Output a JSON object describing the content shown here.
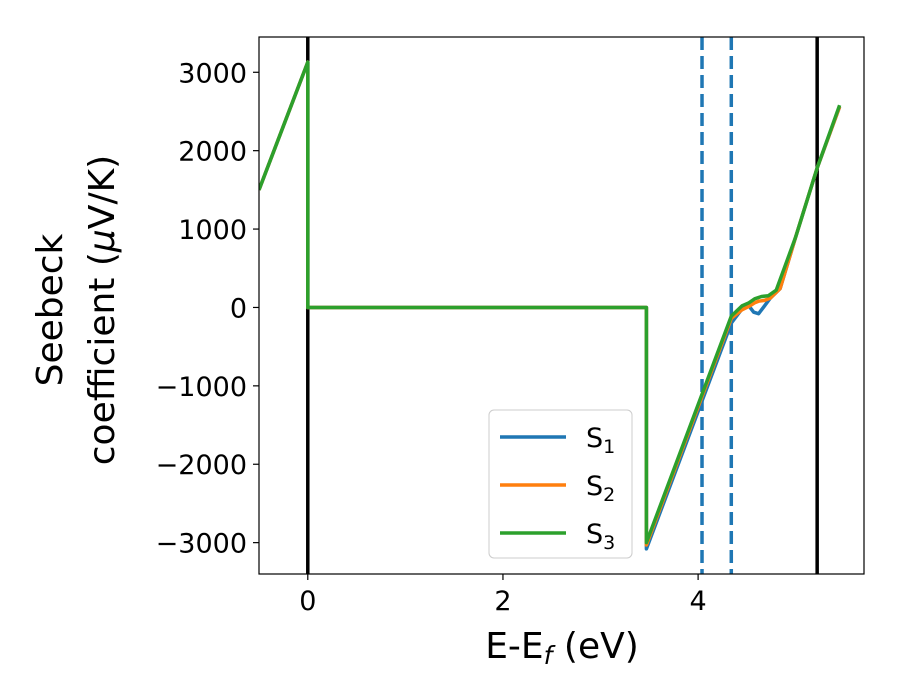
{
  "chart_data": {
    "type": "line",
    "title": "",
    "xlabel": {
      "main": "E-E",
      "sub": "f",
      "tail": " (eV)"
    },
    "ylabel": {
      "line1": "Seebeck",
      "line2_pre": "coefficient  (",
      "mu": "μ",
      "line2_post": "V/K)"
    },
    "xlim": [
      -0.5,
      5.7
    ],
    "ylim": [
      -3400,
      3450
    ],
    "xticks": [
      {
        "value": 0,
        "label": "0"
      },
      {
        "value": 2,
        "label": "2"
      },
      {
        "value": 4,
        "label": "4"
      }
    ],
    "yticks": [
      {
        "value": 3000,
        "label": "3000"
      },
      {
        "value": 2000,
        "label": "2000"
      },
      {
        "value": 1000,
        "label": "1000"
      },
      {
        "value": 0,
        "label": "0"
      },
      {
        "value": -1000,
        "label": "−1000"
      },
      {
        "value": -2000,
        "label": "−2000"
      },
      {
        "value": -3000,
        "label": "−3000"
      }
    ],
    "grid": false,
    "legend_position": "lower-right",
    "vlines": [
      {
        "x": 0.0,
        "color": "#000000",
        "style": "solid"
      },
      {
        "x": 5.22,
        "color": "#000000",
        "style": "solid"
      },
      {
        "x": 4.04,
        "color": "#1f77b4",
        "style": "dashed"
      },
      {
        "x": 4.34,
        "color": "#1f77b4",
        "style": "dashed"
      }
    ],
    "series": [
      {
        "name": "S",
        "sub": "1",
        "color": "#1f77b4",
        "points": [
          [
            -0.5,
            1500
          ],
          [
            0.0,
            3130
          ],
          [
            0.0,
            0
          ],
          [
            3.47,
            0
          ],
          [
            3.47,
            -3080
          ],
          [
            4.34,
            -200
          ],
          [
            4.45,
            -20
          ],
          [
            4.52,
            20
          ],
          [
            4.57,
            -60
          ],
          [
            4.62,
            -80
          ],
          [
            4.68,
            20
          ],
          [
            4.74,
            120
          ],
          [
            4.84,
            240
          ],
          [
            5.0,
            900
          ],
          [
            5.22,
            1780
          ],
          [
            5.45,
            2560
          ]
        ]
      },
      {
        "name": "S",
        "sub": "2",
        "color": "#ff7f0e",
        "points": [
          [
            -0.5,
            1500
          ],
          [
            0.0,
            3130
          ],
          [
            0.0,
            0
          ],
          [
            3.47,
            0
          ],
          [
            3.47,
            -3030
          ],
          [
            4.34,
            -140
          ],
          [
            4.45,
            -30
          ],
          [
            4.53,
            20
          ],
          [
            4.58,
            60
          ],
          [
            4.62,
            80
          ],
          [
            4.68,
            90
          ],
          [
            4.74,
            120
          ],
          [
            4.84,
            240
          ],
          [
            5.0,
            900
          ],
          [
            5.22,
            1780
          ],
          [
            5.45,
            2560
          ]
        ]
      },
      {
        "name": "S",
        "sub": "3",
        "color": "#2ca02c",
        "points": [
          [
            -0.5,
            1500
          ],
          [
            0.0,
            3130
          ],
          [
            0.0,
            0
          ],
          [
            3.47,
            0
          ],
          [
            3.47,
            -3000
          ],
          [
            4.34,
            -110
          ],
          [
            4.45,
            20
          ],
          [
            4.52,
            60
          ],
          [
            4.58,
            110
          ],
          [
            4.65,
            140
          ],
          [
            4.72,
            150
          ],
          [
            4.8,
            220
          ],
          [
            5.0,
            900
          ],
          [
            5.22,
            1780
          ],
          [
            5.45,
            2580
          ]
        ]
      }
    ]
  }
}
